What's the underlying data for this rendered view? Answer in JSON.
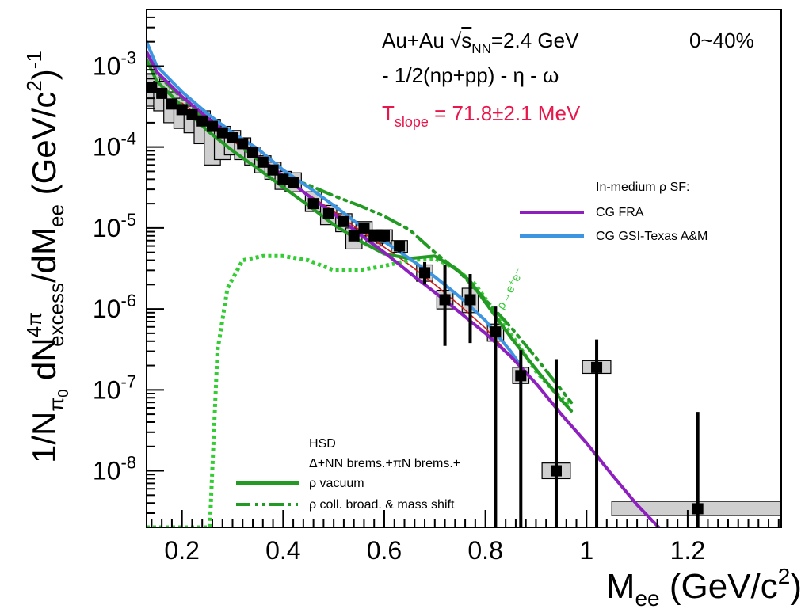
{
  "chart_data": {
    "type": "scatter",
    "x_axis": {
      "min": 0.13,
      "max": 1.385,
      "ticks": [
        0.2,
        0.4,
        0.6,
        0.8,
        1.0,
        1.2
      ],
      "tick_labels": [
        "0.2",
        "0.4",
        "0.6",
        "0.8",
        "1",
        "1.2"
      ]
    },
    "y_axis": {
      "scale": "log",
      "min": 2e-09,
      "max": 0.005,
      "ticks": [
        1e-08,
        1e-07,
        1e-06,
        1e-05,
        0.0001,
        0.001
      ]
    },
    "xlabel": {
      "main": "M",
      "sub": "ee",
      "rest": " (GeV/c",
      "sup": "2",
      "close": ")"
    },
    "ylabel": {
      "p1": "1/N",
      "p1_sub": "π",
      "p1_subsup": "0",
      "p2": " dN",
      "p2_sup": "4π",
      "p2_sub": "excess",
      "p3": "/dM",
      "p3_sub": "ee",
      "p4": " (GeV/c",
      "p4_sup": "2",
      "p5": ")",
      "p5_sup": "-1"
    },
    "annotations": {
      "system_a": "Au+Au ",
      "system_sqrt": "√",
      "system_s": "s",
      "system_s_sub": "NN",
      "system_b": "=2.4 GeV",
      "centrality": "0~40%",
      "subtraction": "- 1/2(np+pp) - η - ω",
      "tslope_t": "T",
      "tslope_sub": "slope",
      "tslope_val": " = 71.8±2.1 MeV",
      "rho_decay": "ρ→e⁺e⁻"
    },
    "legend_top": {
      "title": "In-medium ρ SF:",
      "entries": [
        {
          "label": "CG FRA",
          "color": "#8e1fbf"
        },
        {
          "label": "CG GSI-Texas A&M",
          "color": "#3d94e0"
        }
      ]
    },
    "legend_bottom": {
      "title": "HSD",
      "subtitle": "Δ+NN brems.+πN brems.+",
      "entries": [
        {
          "label": "ρ vacuum",
          "style": "solid",
          "color": "#239a23"
        },
        {
          "label": "ρ coll. broad. & mass shift",
          "style": "dashdot",
          "color": "#239a23"
        }
      ]
    },
    "data_points": [
      {
        "x": 0.14,
        "y": 0.00055,
        "err_lo": 0,
        "err_hi": 0,
        "sys_lo": 0.00032,
        "sys_hi": 0.0008
      },
      {
        "x": 0.16,
        "y": 0.00046,
        "err_lo": 0,
        "err_hi": 0,
        "sys_lo": 0.00028,
        "sys_hi": 0.00065
      },
      {
        "x": 0.18,
        "y": 0.00034,
        "err_lo": 0,
        "err_hi": 0,
        "sys_lo": 0.0002,
        "sys_hi": 0.00048
      },
      {
        "x": 0.2,
        "y": 0.00029,
        "err_lo": 0,
        "err_hi": 0,
        "sys_lo": 0.00017,
        "sys_hi": 0.0004
      },
      {
        "x": 0.22,
        "y": 0.00025,
        "err_lo": 0,
        "err_hi": 0,
        "sys_lo": 0.00015,
        "sys_hi": 0.00032
      },
      {
        "x": 0.24,
        "y": 0.00021,
        "err_lo": 0,
        "err_hi": 0,
        "sys_lo": 0.00011,
        "sys_hi": 0.00028
      },
      {
        "x": 0.26,
        "y": 0.00018,
        "err_lo": 0,
        "err_hi": 0,
        "sys_lo": 6e-05,
        "sys_hi": 0.00022
      },
      {
        "x": 0.28,
        "y": 0.00015,
        "err_lo": 0,
        "err_hi": 0,
        "sys_lo": 7e-05,
        "sys_hi": 0.00018
      },
      {
        "x": 0.3,
        "y": 0.00013,
        "err_lo": 0,
        "err_hi": 0,
        "sys_lo": 8e-05,
        "sys_hi": 0.00016
      },
      {
        "x": 0.32,
        "y": 0.00011,
        "err_lo": 0,
        "err_hi": 0,
        "sys_lo": 7e-05,
        "sys_hi": 0.00013
      },
      {
        "x": 0.34,
        "y": 8.5e-05,
        "err_lo": 0,
        "err_hi": 0,
        "sys_lo": 6e-05,
        "sys_hi": 0.0001
      },
      {
        "x": 0.36,
        "y": 6.5e-05,
        "err_lo": 0,
        "err_hi": 0,
        "sys_lo": 4.8e-05,
        "sys_hi": 7.8e-05
      },
      {
        "x": 0.38,
        "y": 5.2e-05,
        "err_lo": 0,
        "err_hi": 0,
        "sys_lo": 4e-05,
        "sys_hi": 6.5e-05
      },
      {
        "x": 0.4,
        "y": 4e-05,
        "err_lo": 0,
        "err_hi": 0,
        "sys_lo": 3e-05,
        "sys_hi": 5e-05
      },
      {
        "x": 0.42,
        "y": 3.6e-05,
        "err_lo": 0,
        "err_hi": 0,
        "sys_lo": 2.8e-05,
        "sys_hi": 4.8e-05
      },
      {
        "x": 0.46,
        "y": 2e-05,
        "err_lo": 0,
        "err_hi": 0,
        "sys_lo": 1.6e-05,
        "sys_hi": 2.8e-05
      },
      {
        "x": 0.49,
        "y": 1.5e-05,
        "err_lo": 0,
        "err_hi": 0,
        "sys_lo": 1.1e-05,
        "sys_hi": 1.9e-05
      },
      {
        "x": 0.52,
        "y": 1.2e-05,
        "err_lo": 0,
        "err_hi": 0,
        "sys_lo": 9e-06,
        "sys_hi": 1.5e-05
      },
      {
        "x": 0.54,
        "y": 8e-06,
        "err_lo": 0,
        "err_hi": 0,
        "sys_lo": 5.5e-06,
        "sys_hi": 1e-05
      },
      {
        "x": 0.56,
        "y": 1e-05,
        "err_lo": 0,
        "err_hi": 0,
        "sys_lo": 8e-06,
        "sys_hi": 1.2e-05
      },
      {
        "x": 0.58,
        "y": 8e-06,
        "err_lo": 0,
        "err_hi": 0,
        "sys_lo": 6e-06,
        "sys_hi": 9.5e-06
      },
      {
        "x": 0.6,
        "y": 8e-06,
        "err_lo": 1.2e-06,
        "err_hi": 1.5e-06,
        "sys_lo": 6.5e-06,
        "sys_hi": 9.5e-06
      },
      {
        "x": 0.63,
        "y": 6e-06,
        "err_lo": 1e-06,
        "err_hi": 1e-06,
        "sys_lo": 5e-06,
        "sys_hi": 7e-06
      },
      {
        "x": 0.68,
        "y": 2.8e-06,
        "err_lo": 8e-07,
        "err_hi": 1e-06,
        "sys_lo": 2.2e-06,
        "sys_hi": 3.5e-06
      },
      {
        "x": 0.72,
        "y": 1.3e-06,
        "err_lo": 9.5e-07,
        "err_hi": 2.2e-06,
        "sys_lo": 1e-06,
        "sys_hi": 1.7e-06
      },
      {
        "x": 0.77,
        "y": 1.3e-06,
        "err_lo": 9.2e-07,
        "err_hi": 1.4e-06,
        "sys_lo": 9e-07,
        "sys_hi": 1.8e-06
      },
      {
        "x": 0.82,
        "y": 5.2e-07,
        "err_lo": 5.19e-07,
        "err_hi": 5.5e-07,
        "sys_lo": 4e-07,
        "sys_hi": 6.5e-07
      },
      {
        "x": 0.87,
        "y": 1.5e-07,
        "err_lo": 1.499e-07,
        "err_hi": 1.6e-07,
        "sys_lo": 1.2e-07,
        "sys_hi": 1.9e-07
      },
      {
        "x": 0.94,
        "y": 1e-08,
        "err_lo": 9.999e-09,
        "err_hi": 2.3e-07,
        "sys_lo": 8e-09,
        "sys_hi": 1.25e-08
      },
      {
        "x": 1.02,
        "y": 1.9e-07,
        "err_lo": 1.899e-07,
        "err_hi": 2.3e-07,
        "sys_lo": 1.6e-07,
        "sys_hi": 2.3e-07
      },
      {
        "x": 1.22,
        "y": 3.4e-09,
        "err_lo": 3.3999e-09,
        "err_hi": 5e-08,
        "sys_lo": 2.8e-09,
        "sys_hi": 4.2e-09
      }
    ],
    "series": [
      {
        "name": "CG FRA",
        "color": "#8e1fbf",
        "style": "solid",
        "x": [
          0.13,
          0.15,
          0.2,
          0.25,
          0.3,
          0.35,
          0.4,
          0.45,
          0.5,
          0.55,
          0.6,
          0.65,
          0.7,
          0.75,
          0.8,
          0.85,
          0.9,
          0.95,
          1.0,
          1.05,
          1.1,
          1.15
        ],
        "y": [
          0.0015,
          0.00085,
          0.00042,
          0.00023,
          0.00013,
          7.6e-05,
          4.4e-05,
          2.5e-05,
          1.5e-05,
          8.5e-06,
          5e-06,
          2.8e-06,
          1.6e-06,
          9e-07,
          5e-07,
          2.6e-07,
          1.2e-07,
          5e-08,
          2.2e-08,
          9e-09,
          3.8e-09,
          1.8e-09
        ]
      },
      {
        "name": "CG GSI-Texas A&M",
        "color": "#3d94e0",
        "style": "solid",
        "x": [
          0.13,
          0.15,
          0.2,
          0.25,
          0.3,
          0.35,
          0.4,
          0.45,
          0.5,
          0.55,
          0.6,
          0.65,
          0.7,
          0.75,
          0.8,
          0.85,
          0.87
        ],
        "y": [
          0.002,
          0.001,
          0.00048,
          0.00026,
          0.00015,
          9.5e-05,
          5.2e-05,
          3.2e-05,
          1.9e-05,
          1.1e-05,
          6.8e-06,
          4.2e-06,
          2.5e-06,
          1.4e-06,
          7.2e-07,
          3e-07,
          2e-07
        ]
      },
      {
        "name": "ρ vacuum",
        "color": "#239a23",
        "style": "solid",
        "x": [
          0.13,
          0.15,
          0.2,
          0.25,
          0.3,
          0.35,
          0.4,
          0.45,
          0.5,
          0.55,
          0.6,
          0.65,
          0.7,
          0.74,
          0.77,
          0.8,
          0.85,
          0.9,
          0.95,
          0.97
        ],
        "y": [
          0.0012,
          0.00065,
          0.00032,
          0.00016,
          9e-05,
          5.4e-05,
          3.2e-05,
          1.9e-05,
          1.1e-05,
          7e-06,
          4.8e-06,
          4.2e-06,
          4.5e-06,
          3.2e-06,
          2.2e-06,
          1.2e-06,
          4.5e-07,
          1.8e-07,
          7.5e-08,
          5.5e-08
        ]
      },
      {
        "name": "ρ coll. broad. & mass shift",
        "color": "#239a23",
        "style": "dashdot",
        "x": [
          0.13,
          0.15,
          0.2,
          0.25,
          0.3,
          0.35,
          0.4,
          0.45,
          0.5,
          0.55,
          0.6,
          0.65,
          0.7,
          0.75,
          0.8,
          0.85,
          0.9,
          0.95,
          0.97
        ],
        "y": [
          0.0015,
          0.0008,
          0.0004,
          0.00021,
          0.00012,
          7e-05,
          4.4e-05,
          3.4e-05,
          2.5e-05,
          1.9e-05,
          1.4e-05,
          9.5e-06,
          5e-06,
          2.8e-06,
          1.3e-06,
          6e-07,
          2.5e-07,
          1e-07,
          7e-08
        ]
      },
      {
        "name": "ρ→e⁺e⁻",
        "color": "#33cc33",
        "style": "dotted",
        "x": [
          0.13,
          0.2,
          0.255,
          0.27,
          0.29,
          0.32,
          0.36,
          0.4,
          0.45,
          0.5,
          0.55,
          0.6,
          0.65,
          0.7,
          0.74,
          0.78,
          0.82,
          0.86,
          0.9,
          0.94,
          0.97
        ],
        "y": [
          2e-09,
          2e-09,
          2e-09,
          3e-07,
          1.8e-06,
          4e-06,
          4.5e-06,
          4.5e-06,
          4e-06,
          3e-06,
          3e-06,
          3.4e-06,
          4e-06,
          4.2e-06,
          3.2e-06,
          2e-06,
          9e-07,
          4e-07,
          1.7e-07,
          9e-08,
          6.5e-08
        ]
      },
      {
        "name": "red thin",
        "color": "#d01c1c",
        "style": "solid",
        "x": [
          0.2,
          0.25,
          0.3,
          0.35,
          0.4,
          0.45,
          0.5,
          0.55,
          0.6,
          0.65,
          0.7,
          0.75,
          0.8,
          0.85
        ],
        "y": [
          0.00035,
          0.0002,
          0.00012,
          7.2e-05,
          4.3e-05,
          2.6e-05,
          1.6e-05,
          9.5e-06,
          5.8e-06,
          3.5e-06,
          2e-06,
          1.1e-06,
          5.8e-07,
          2.6e-07
        ]
      }
    ]
  }
}
